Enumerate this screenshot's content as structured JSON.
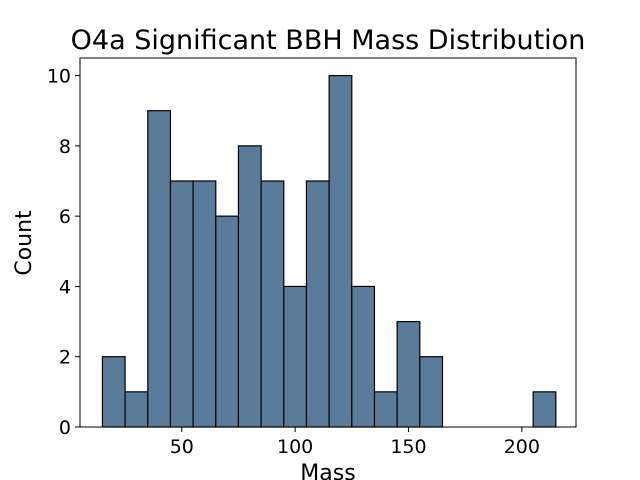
{
  "chart_data": {
    "type": "bar",
    "title": "O4a Significant BBH Mass Distribution",
    "xlabel": "Mass",
    "ylabel": "Count",
    "xlim": [
      5.1,
      223.9
    ],
    "ylim": [
      0,
      10.5
    ],
    "xticks": [
      50,
      100,
      150,
      200
    ],
    "yticks": [
      0,
      2,
      4,
      6,
      8,
      10
    ],
    "grid": false,
    "bar_color": "#5a7b99",
    "bin_edges": [
      15,
      25,
      35,
      45,
      55,
      65,
      75,
      85,
      95,
      105,
      115,
      125,
      135,
      145,
      155,
      165,
      175,
      185,
      195,
      205,
      215
    ],
    "values": [
      2,
      1,
      9,
      7,
      7,
      6,
      8,
      7,
      4,
      7,
      10,
      4,
      1,
      3,
      2,
      0,
      0,
      0,
      0,
      1
    ]
  }
}
